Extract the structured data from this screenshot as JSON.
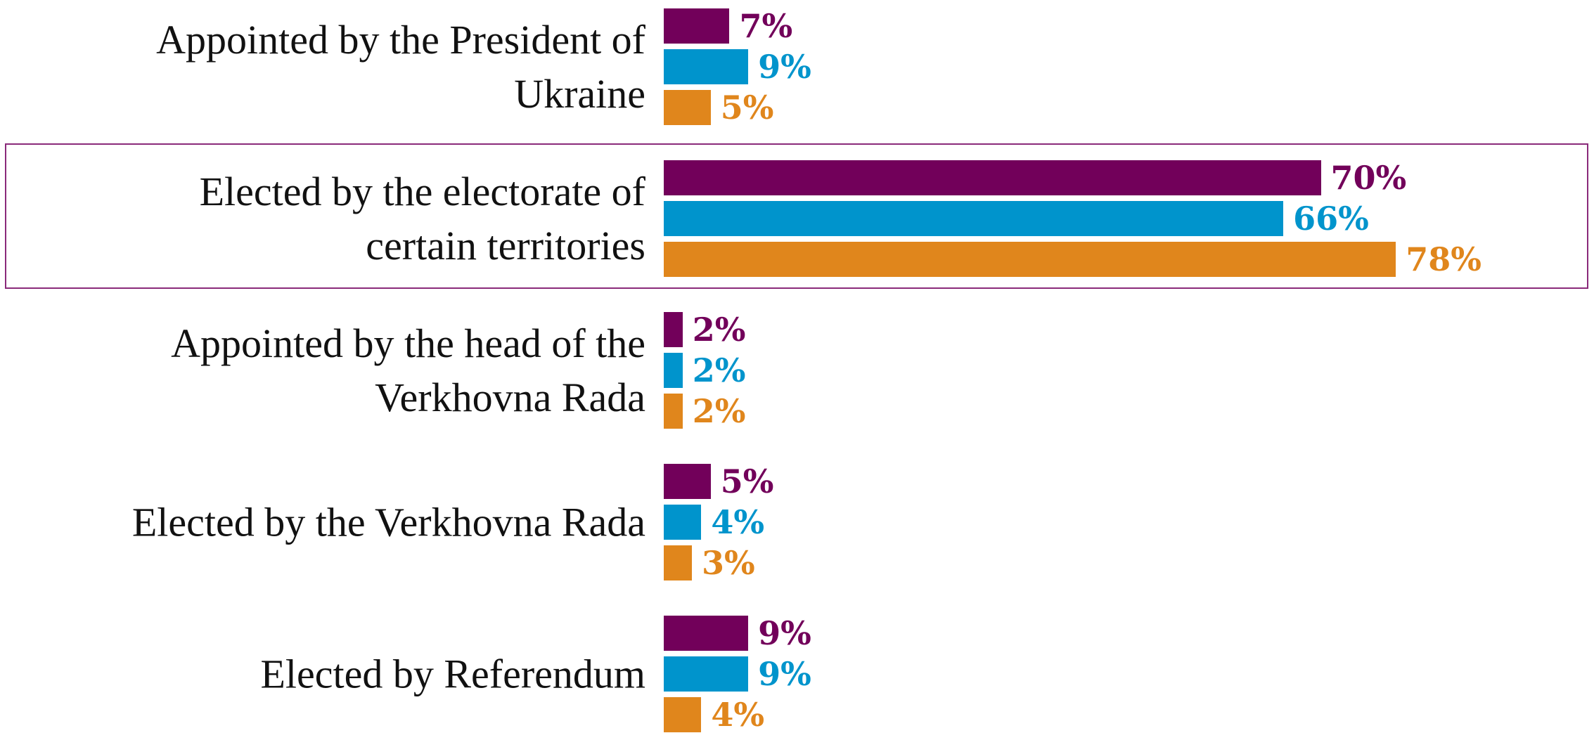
{
  "chart_data": {
    "type": "bar",
    "orientation": "horizontal",
    "categories": [
      "Appointed by the President of\nUkraine",
      "Elected by the electorate of\ncertain territories",
      "Appointed by the head of the\nVerkhovna Rada",
      "Elected by the Verkhovna Rada",
      "Elected by Referendum"
    ],
    "series": [
      {
        "color": "#72005a",
        "values": [
          7,
          70,
          2,
          5,
          9
        ],
        "value_labels": [
          "7%",
          "70%",
          "2%",
          "5%",
          "9%"
        ]
      },
      {
        "color": "#0094cc",
        "values": [
          9,
          66,
          2,
          4,
          9
        ],
        "value_labels": [
          "9%",
          "66%",
          "2%",
          "4%",
          "9%"
        ]
      },
      {
        "color": "#e0861c",
        "values": [
          5,
          78,
          2,
          3,
          4
        ],
        "value_labels": [
          "5%",
          "78%",
          "2%",
          "3%",
          "4%"
        ]
      }
    ]
  }
}
